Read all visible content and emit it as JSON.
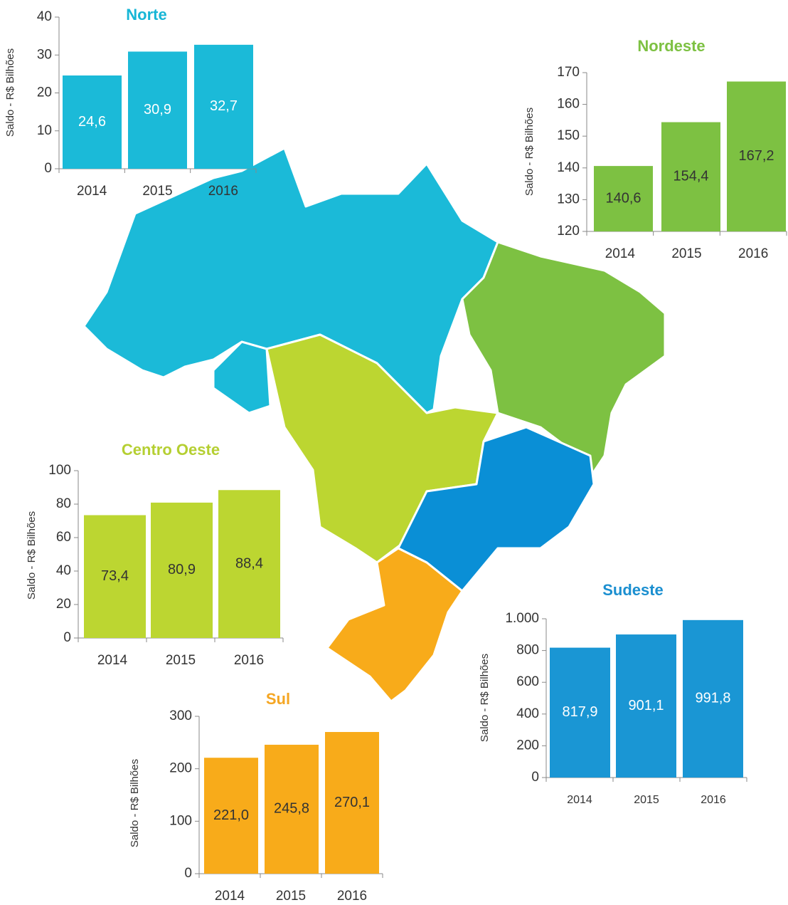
{
  "chart_data": [
    {
      "type": "bar",
      "title": "Norte",
      "ylabel": "Saldo - R$ Bilhões",
      "categories": [
        "2014",
        "2015",
        "2016"
      ],
      "values": [
        24.6,
        30.9,
        32.7
      ],
      "value_labels": [
        "24,6",
        "30,9",
        "32,7"
      ],
      "color": "#1bbad8",
      "ylim": [
        0,
        40
      ],
      "yticks": [
        0,
        10,
        20,
        30,
        40
      ]
    },
    {
      "type": "bar",
      "title": "Nordeste",
      "ylabel": "Saldo - R$ Bilhões",
      "categories": [
        "2014",
        "2015",
        "2016"
      ],
      "values": [
        140.6,
        154.4,
        167.2
      ],
      "value_labels": [
        "140,6",
        "154,4",
        "167,2"
      ],
      "color": "#7dc142",
      "ylim": [
        120,
        170
      ],
      "yticks": [
        120,
        130,
        140,
        150,
        160,
        170
      ]
    },
    {
      "type": "bar",
      "title": "Centro Oeste",
      "ylabel": "Saldo - R$ Bilhões",
      "categories": [
        "2014",
        "2015",
        "2016"
      ],
      "values": [
        73.4,
        80.9,
        88.4
      ],
      "value_labels": [
        "73,4",
        "80,9",
        "88,4"
      ],
      "color": "#bcd631",
      "ylim": [
        0,
        100
      ],
      "yticks": [
        0,
        20,
        40,
        60,
        80,
        100
      ]
    },
    {
      "type": "bar",
      "title": "Sudeste",
      "ylabel": "Saldo - R$ Bilhões",
      "categories": [
        "2014",
        "2015",
        "2016"
      ],
      "values": [
        817.9,
        901.1,
        991.8
      ],
      "value_labels": [
        "817,9",
        "901,1",
        "991,8"
      ],
      "color": "#1a96d4",
      "ylim": [
        0,
        1000
      ],
      "yticks": [
        0,
        200,
        400,
        600,
        800,
        {
          "value": 1000,
          "label": "1.000"
        }
      ]
    },
    {
      "type": "bar",
      "title": "Sul",
      "ylabel": "Saldo - R$ Bilhões",
      "categories": [
        "2014",
        "2015",
        "2016"
      ],
      "values": [
        221.0,
        245.8,
        270.1
      ],
      "value_labels": [
        "221,0",
        "245,8",
        "270,1"
      ],
      "color": "#f8ab1a",
      "ylim": [
        0,
        300
      ],
      "yticks": [
        0,
        100,
        200,
        300
      ]
    }
  ]
}
